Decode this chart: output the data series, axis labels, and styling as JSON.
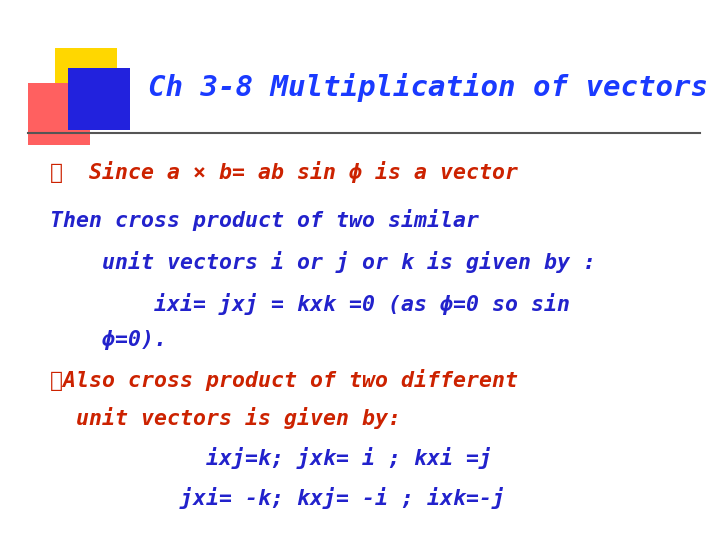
{
  "title": "Ch 3-8 Multiplication of vectors",
  "title_color": "#1a3aff",
  "background_color": "#FFFFFF",
  "yellow_color": "#FFD700",
  "pink_color": "#FF6060",
  "blue_color": "#2222DD",
  "red_text": "#CC2200",
  "blue_text": "#2222CC",
  "line_color": "#555555",
  "lines": [
    {
      "text": "❖  Since a × b= ab sin ϕ is a vector",
      "color": "red"
    },
    {
      "text": "Then cross product of two similar",
      "color": "blue"
    },
    {
      "text": "    unit vectors i or j or k is given by :",
      "color": "blue"
    },
    {
      "text": "        ixi= jxj = kxk =0 (as ϕ=0 so sin",
      "color": "blue"
    },
    {
      "text": "    ϕ=0).",
      "color": "blue"
    },
    {
      "text": "❖Also cross product of two different",
      "color": "red"
    },
    {
      "text": "  unit vectors is given by:",
      "color": "red"
    },
    {
      "text": "            ixj=k; jxk= i ; kxi =j",
      "color": "blue"
    },
    {
      "text": "          jxi= -k; kxj= -i ; ixk=-j",
      "color": "blue"
    }
  ]
}
